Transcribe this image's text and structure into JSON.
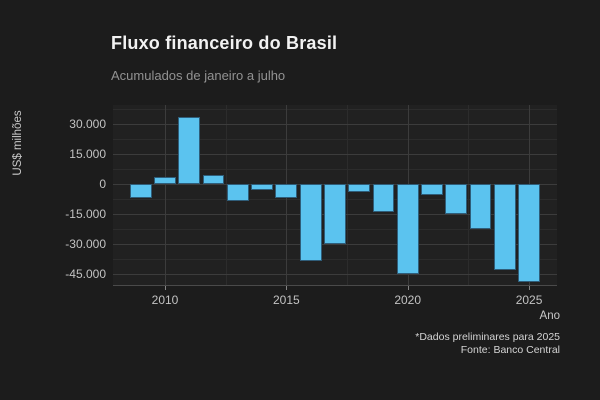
{
  "chart_data": {
    "type": "bar",
    "title": "Fluxo financeiro do Brasil",
    "subtitle": "Acumulados de janeiro a julho",
    "xlabel": "Ano",
    "ylabel": "US$ milhões",
    "caption_line1": "*Dados preliminares para 2025",
    "caption_line2": "Fonte: Banco Central",
    "categories": [
      2009,
      2010,
      2011,
      2012,
      2013,
      2014,
      2015,
      2016,
      2017,
      2018,
      2019,
      2020,
      2021,
      2022,
      2023,
      2024,
      2025
    ],
    "values": [
      -7000,
      3500,
      33500,
      4500,
      -8500,
      -3000,
      -7000,
      -38500,
      -30000,
      -4000,
      -14000,
      -45000,
      -5500,
      -15000,
      -22500,
      -43000,
      -49000
    ],
    "ylim": [
      -50500,
      39500
    ],
    "y_major_ticks": [
      30000,
      15000,
      0,
      -15000,
      -30000,
      -45000
    ],
    "y_tick_labels": [
      "30.000",
      "15.000",
      "0",
      "-15.000",
      "-30.000",
      "-45.000"
    ],
    "y_minor_step": 7500,
    "x_major_ticks": [
      2010,
      2015,
      2020,
      2025
    ],
    "x_minor_ticks": [
      2012.5,
      2017.5,
      2022.5
    ],
    "grid": true,
    "legend": false,
    "theme": "dark",
    "bar_color": "#5bc3ef",
    "bar_edge_color": "#2f5d79",
    "background_color": "#1c1c1c",
    "panel_color": "#212121"
  }
}
